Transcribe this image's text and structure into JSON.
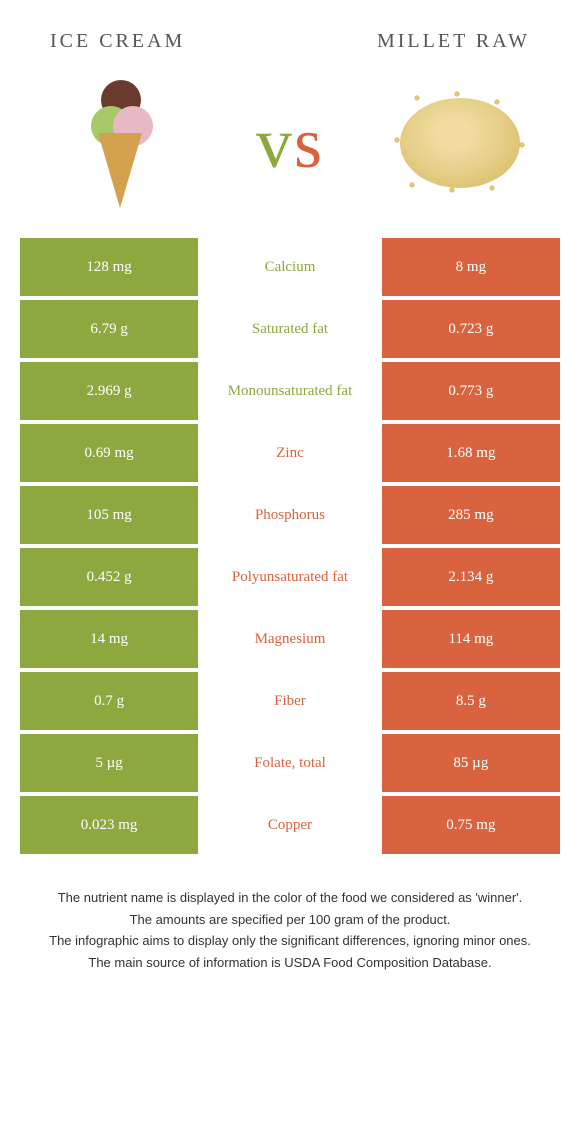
{
  "colors": {
    "left": "#8da83f",
    "right": "#d9633f",
    "white": "#ffffff",
    "text_gray": "#555555"
  },
  "header": {
    "left_title": "Ice Cream",
    "right_title": "Millet raw"
  },
  "vs": {
    "v": "v",
    "s": "s"
  },
  "rows": [
    {
      "left": "128 mg",
      "label": "Calcium",
      "right": "8 mg",
      "winner": "left"
    },
    {
      "left": "6.79 g",
      "label": "Saturated fat",
      "right": "0.723 g",
      "winner": "left"
    },
    {
      "left": "2.969 g",
      "label": "Monounsaturated fat",
      "right": "0.773 g",
      "winner": "left"
    },
    {
      "left": "0.69 mg",
      "label": "Zinc",
      "right": "1.68 mg",
      "winner": "right"
    },
    {
      "left": "105 mg",
      "label": "Phosphorus",
      "right": "285 mg",
      "winner": "right"
    },
    {
      "left": "0.452 g",
      "label": "Polyunsaturated fat",
      "right": "2.134 g",
      "winner": "right"
    },
    {
      "left": "14 mg",
      "label": "Magnesium",
      "right": "114 mg",
      "winner": "right"
    },
    {
      "left": "0.7 g",
      "label": "Fiber",
      "right": "8.5 g",
      "winner": "right"
    },
    {
      "left": "5 µg",
      "label": "Folate, total",
      "right": "85 µg",
      "winner": "right"
    },
    {
      "left": "0.023 mg",
      "label": "Copper",
      "right": "0.75 mg",
      "winner": "right"
    }
  ],
  "footer": {
    "line1": "The nutrient name is displayed in the color of the food we considered as 'winner'.",
    "line2": "The amounts are specified per 100 gram of the product.",
    "line3": "The infographic aims to display only the significant differences, ignoring minor ones.",
    "line4": "The main source of information is USDA Food Composition Database."
  }
}
